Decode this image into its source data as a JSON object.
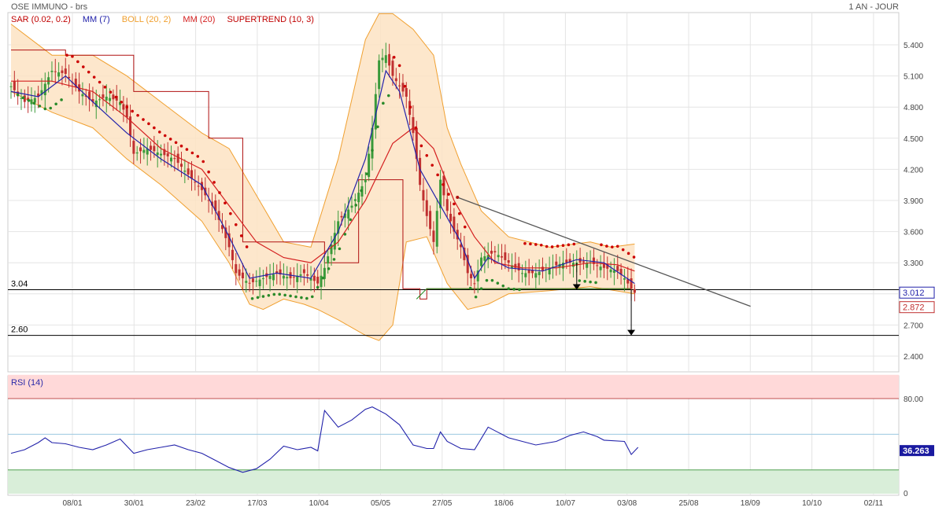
{
  "header": {
    "title": "OSE IMMUNO - brs",
    "period": "1 AN - JOUR"
  },
  "legend": [
    {
      "label": "SAR (0.02, 0.2)",
      "color": "#c00000"
    },
    {
      "label": "MM (7)",
      "color": "#2222aa"
    },
    {
      "label": "BOLL (20, 2)",
      "color": "#f0a030"
    },
    {
      "label": "MM (20)",
      "color": "#d42020"
    },
    {
      "label": "SUPERTREND (10, 3)",
      "color": "#c00000"
    }
  ],
  "levels": {
    "support_label": "3.04",
    "target_label": "2.60"
  },
  "price_tags": {
    "last": "3.012",
    "lower": "2.872"
  },
  "rsi": {
    "label": "RSI (14)",
    "value": "36.263",
    "upper_level": 80,
    "lower_level": 20
  },
  "colors": {
    "up": "#3a9a3a",
    "down": "#c03030",
    "mm7": "#2222aa",
    "mm20": "#d42020",
    "boll_fill": "#fde3c3",
    "boll_line": "#f0a030",
    "sar_down": "#cc0000",
    "sar_up": "#2a8a2a",
    "rsi_line": "#2222aa",
    "rsi_over": "#ffd9d9",
    "rsi_under": "#d9eed9"
  },
  "chart_data": [
    {
      "type": "candlestick",
      "title": "OSE IMMUNO - brs",
      "x_tick_labels": [
        "08/01",
        "30/01",
        "23/02",
        "17/03",
        "10/04",
        "05/05",
        "27/05",
        "18/06",
        "10/07",
        "03/08",
        "25/08",
        "18/09",
        "10/10",
        "02/11"
      ],
      "y_tick_labels": [
        "5.400",
        "5.100",
        "4.800",
        "4.500",
        "4.200",
        "3.900",
        "3.600",
        "3.300",
        "3.000",
        "2.700",
        "2.400"
      ],
      "ylim": [
        2.37,
        5.72
      ],
      "grid": true,
      "horizontal_levels": [
        3.04,
        2.6
      ],
      "close_path": [
        [
          0,
          5.0
        ],
        [
          4,
          4.85
        ],
        [
          8,
          4.9
        ],
        [
          12,
          5.15
        ],
        [
          16,
          5.12
        ],
        [
          20,
          4.95
        ],
        [
          24,
          4.85
        ],
        [
          28,
          4.9
        ],
        [
          32,
          4.85
        ],
        [
          34,
          4.7
        ],
        [
          36,
          4.35
        ],
        [
          40,
          4.4
        ],
        [
          44,
          4.35
        ],
        [
          48,
          4.3
        ],
        [
          52,
          4.15
        ],
        [
          56,
          4.0
        ],
        [
          60,
          3.8
        ],
        [
          64,
          3.45
        ],
        [
          66,
          3.2
        ],
        [
          70,
          3.1
        ],
        [
          74,
          3.15
        ],
        [
          78,
          3.2
        ],
        [
          82,
          3.15
        ],
        [
          86,
          3.2
        ],
        [
          90,
          3.1
        ],
        [
          92,
          3.25
        ],
        [
          96,
          3.7
        ],
        [
          100,
          3.85
        ],
        [
          104,
          4.1
        ],
        [
          106,
          4.6
        ],
        [
          108,
          5.25
        ],
        [
          110,
          5.3
        ],
        [
          112,
          5.1
        ],
        [
          116,
          4.9
        ],
        [
          118,
          4.55
        ],
        [
          120,
          4.05
        ],
        [
          122,
          3.75
        ],
        [
          124,
          3.5
        ],
        [
          126,
          4.1
        ],
        [
          128,
          3.8
        ],
        [
          130,
          3.6
        ],
        [
          132,
          3.45
        ],
        [
          134,
          3.2
        ],
        [
          136,
          3.1
        ],
        [
          138,
          3.35
        ],
        [
          142,
          3.4
        ],
        [
          146,
          3.3
        ],
        [
          150,
          3.2
        ],
        [
          154,
          3.2
        ],
        [
          158,
          3.25
        ],
        [
          162,
          3.3
        ],
        [
          166,
          3.3
        ],
        [
          170,
          3.3
        ],
        [
          174,
          3.25
        ],
        [
          178,
          3.22
        ],
        [
          180,
          3.15
        ],
        [
          182,
          3.05
        ],
        [
          183,
          3.01
        ]
      ],
      "trendline": [
        [
          131,
          3.93
        ],
        [
          217,
          2.88
        ]
      ],
      "arrows": [
        {
          "x": 166,
          "from": 3.3,
          "to": 3.04
        },
        {
          "x": 182,
          "from": 3.04,
          "to": 2.6
        }
      ],
      "bollinger_upper": [
        [
          0,
          5.6
        ],
        [
          12,
          5.3
        ],
        [
          24,
          5.3
        ],
        [
          34,
          5.1
        ],
        [
          44,
          4.85
        ],
        [
          56,
          4.55
        ],
        [
          64,
          4.4
        ],
        [
          72,
          3.95
        ],
        [
          80,
          3.5
        ],
        [
          88,
          3.45
        ],
        [
          96,
          4.3
        ],
        [
          104,
          5.45
        ],
        [
          108,
          5.7
        ],
        [
          112,
          5.7
        ],
        [
          118,
          5.55
        ],
        [
          124,
          5.3
        ],
        [
          128,
          4.6
        ],
        [
          132,
          4.25
        ],
        [
          138,
          3.8
        ],
        [
          146,
          3.55
        ],
        [
          158,
          3.45
        ],
        [
          170,
          3.5
        ],
        [
          176,
          3.45
        ],
        [
          183,
          3.48
        ]
      ],
      "bollinger_lower": [
        [
          0,
          4.95
        ],
        [
          12,
          4.75
        ],
        [
          24,
          4.6
        ],
        [
          34,
          4.3
        ],
        [
          44,
          4.05
        ],
        [
          56,
          3.7
        ],
        [
          64,
          3.3
        ],
        [
          70,
          2.9
        ],
        [
          74,
          2.85
        ],
        [
          80,
          2.95
        ],
        [
          86,
          2.9
        ],
        [
          90,
          2.85
        ],
        [
          96,
          2.75
        ],
        [
          104,
          2.6
        ],
        [
          108,
          2.55
        ],
        [
          112,
          2.7
        ],
        [
          116,
          3.5
        ],
        [
          122,
          3.55
        ],
        [
          128,
          3.1
        ],
        [
          134,
          2.85
        ],
        [
          140,
          2.9
        ],
        [
          146,
          3.0
        ],
        [
          158,
          3.03
        ],
        [
          170,
          3.07
        ],
        [
          183,
          3.0
        ]
      ],
      "mm20": [
        [
          0,
          5.05
        ],
        [
          12,
          5.05
        ],
        [
          24,
          4.95
        ],
        [
          34,
          4.7
        ],
        [
          44,
          4.4
        ],
        [
          56,
          4.2
        ],
        [
          64,
          3.85
        ],
        [
          72,
          3.5
        ],
        [
          80,
          3.35
        ],
        [
          88,
          3.3
        ],
        [
          96,
          3.5
        ],
        [
          104,
          3.9
        ],
        [
          112,
          4.45
        ],
        [
          118,
          4.6
        ],
        [
          124,
          4.4
        ],
        [
          130,
          3.9
        ],
        [
          136,
          3.55
        ],
        [
          142,
          3.3
        ],
        [
          150,
          3.25
        ],
        [
          160,
          3.25
        ],
        [
          170,
          3.3
        ],
        [
          178,
          3.28
        ],
        [
          183,
          3.22
        ]
      ],
      "mm7": [
        [
          0,
          4.95
        ],
        [
          8,
          4.9
        ],
        [
          16,
          5.1
        ],
        [
          24,
          4.85
        ],
        [
          34,
          4.55
        ],
        [
          44,
          4.3
        ],
        [
          56,
          4.05
        ],
        [
          64,
          3.55
        ],
        [
          70,
          3.15
        ],
        [
          78,
          3.2
        ],
        [
          88,
          3.15
        ],
        [
          96,
          3.6
        ],
        [
          104,
          4.3
        ],
        [
          110,
          5.15
        ],
        [
          114,
          4.95
        ],
        [
          120,
          4.2
        ],
        [
          126,
          3.85
        ],
        [
          132,
          3.5
        ],
        [
          136,
          3.15
        ],
        [
          140,
          3.35
        ],
        [
          146,
          3.25
        ],
        [
          156,
          3.22
        ],
        [
          166,
          3.33
        ],
        [
          174,
          3.3
        ],
        [
          183,
          3.1
        ]
      ],
      "supertrend": [
        [
          0,
          5.35
        ],
        [
          8,
          5.35
        ],
        [
          16,
          5.3
        ],
        [
          34,
          5.3
        ],
        [
          36,
          4.95
        ],
        [
          56,
          4.95
        ],
        [
          58,
          4.5
        ],
        [
          66,
          4.5
        ],
        [
          68,
          3.5
        ],
        [
          88,
          3.5
        ],
        [
          92,
          3.3
        ],
        [
          100,
          3.3
        ],
        [
          102,
          4.1
        ],
        [
          114,
          4.1
        ],
        [
          115,
          3.05
        ],
        [
          119,
          3.05
        ],
        [
          120,
          2.95
        ],
        [
          122,
          3.05
        ],
        [
          182,
          3.05
        ]
      ]
    },
    {
      "type": "line",
      "title": "RSI (14)",
      "y_tick_labels": [
        "80.00",
        "0"
      ],
      "ylim": [
        0,
        100
      ],
      "levels": [
        80,
        20
      ],
      "last_value": 36.263,
      "points": [
        [
          0,
          34
        ],
        [
          4,
          37
        ],
        [
          8,
          43
        ],
        [
          10,
          47
        ],
        [
          12,
          43
        ],
        [
          16,
          42
        ],
        [
          20,
          39
        ],
        [
          24,
          37
        ],
        [
          28,
          41
        ],
        [
          32,
          46
        ],
        [
          36,
          34
        ],
        [
          40,
          37
        ],
        [
          44,
          39
        ],
        [
          48,
          41
        ],
        [
          52,
          37
        ],
        [
          56,
          34
        ],
        [
          60,
          28
        ],
        [
          64,
          22
        ],
        [
          68,
          18
        ],
        [
          72,
          21
        ],
        [
          76,
          29
        ],
        [
          80,
          40
        ],
        [
          84,
          37
        ],
        [
          88,
          39
        ],
        [
          90,
          36
        ],
        [
          92,
          70
        ],
        [
          96,
          56
        ],
        [
          100,
          62
        ],
        [
          104,
          71
        ],
        [
          106,
          73
        ],
        [
          110,
          67
        ],
        [
          114,
          58
        ],
        [
          118,
          41
        ],
        [
          122,
          38
        ],
        [
          124,
          38
        ],
        [
          126,
          52
        ],
        [
          128,
          44
        ],
        [
          132,
          38
        ],
        [
          136,
          37
        ],
        [
          140,
          56
        ],
        [
          146,
          47
        ],
        [
          154,
          41
        ],
        [
          160,
          44
        ],
        [
          164,
          49
        ],
        [
          168,
          52
        ],
        [
          172,
          48
        ],
        [
          174,
          45
        ],
        [
          180,
          44
        ],
        [
          182,
          33
        ],
        [
          184,
          39
        ]
      ]
    }
  ]
}
